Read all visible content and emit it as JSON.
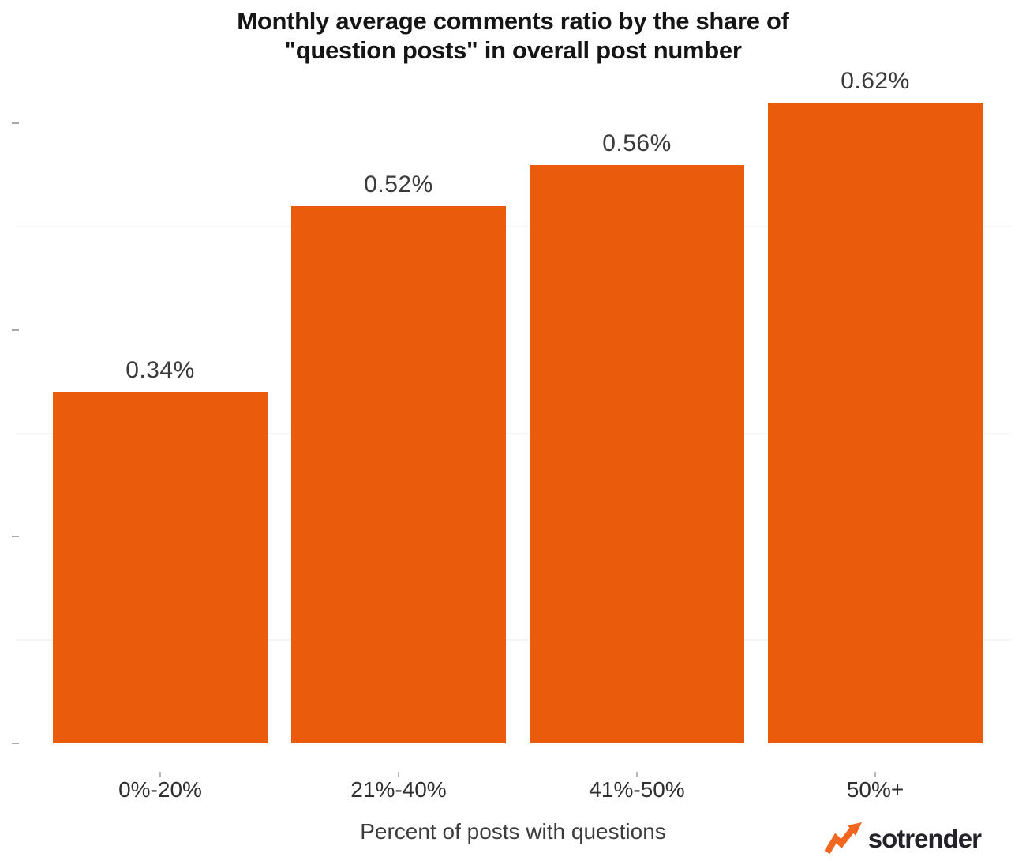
{
  "title": {
    "line1": "Monthly average comments ratio by the share of",
    "line2": "\"question posts\" in overall post number"
  },
  "chart_data": {
    "type": "bar",
    "title": "Monthly average comments ratio by the share of \"question posts\" in overall post number",
    "categories": [
      "0%-20%",
      "21%-40%",
      "41%-50%",
      "50%+"
    ],
    "values": [
      0.34,
      0.52,
      0.56,
      0.62
    ],
    "value_labels": [
      "0.34%",
      "0.52%",
      "0.56%",
      "0.62%"
    ],
    "xlabel": "Percent of posts with questions",
    "ylabel": "",
    "unit": "%",
    "ylim": [
      0,
      0.72
    ],
    "yticks": [
      0,
      0.2,
      0.4,
      0.6
    ],
    "yticks_labeled": false,
    "gridlines": [
      0.1,
      0.3,
      0.5
    ],
    "legend": "none",
    "bar_color": "#EB5B0C"
  },
  "branding": {
    "logo_text": "sotrender",
    "arrow_color": "#F2661F",
    "text_color": "#232329"
  }
}
